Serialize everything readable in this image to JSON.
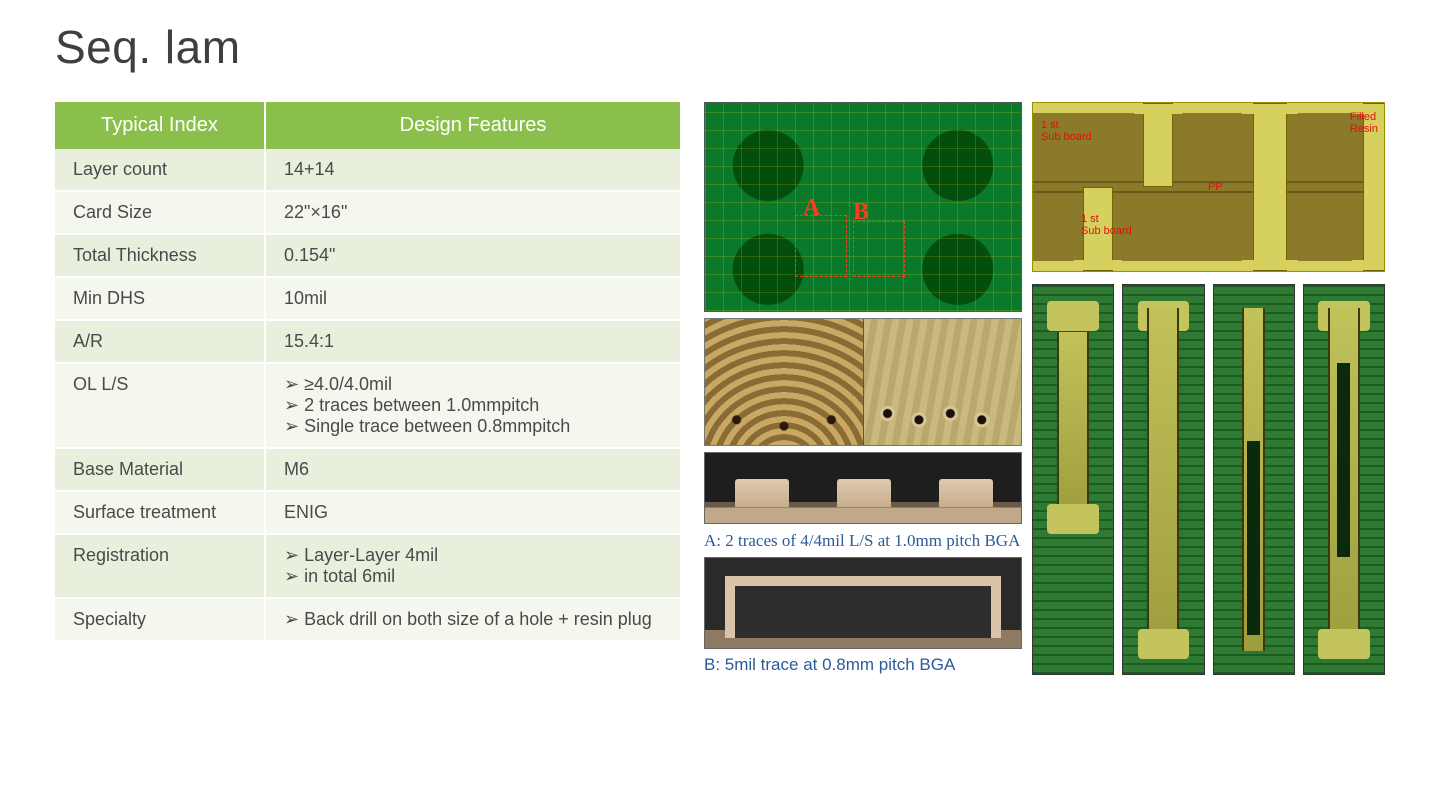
{
  "title": "Seq. lam",
  "table": {
    "headers": [
      "Typical Index",
      "Design Features"
    ],
    "rows": [
      {
        "label": "Layer count",
        "value": "14+14"
      },
      {
        "label": "Card Size",
        "value": "22\"×16\""
      },
      {
        "label": "Total Thickness",
        "value": "0.154\""
      },
      {
        "label": "Min DHS",
        "value": "10mil"
      },
      {
        "label": "A/R",
        "value": "15.4:1"
      },
      {
        "label": "OL L/S",
        "bullets": [
          "≥4.0/4.0mil",
          "2 traces between 1.0mmpitch",
          "Single trace between 0.8mmpitch"
        ]
      },
      {
        "label": "Base Material",
        "value": "M6"
      },
      {
        "label": "Surface treatment",
        "value": "ENIG"
      },
      {
        "label": "Registration",
        "bullets": [
          "Layer-Layer 4mil",
          "in total 6mil"
        ]
      },
      {
        "label": "Specialty",
        "bullets": [
          "Back drill on both size of a hole + resin plug"
        ]
      }
    ]
  },
  "pcb_labels": {
    "a": "A",
    "b": "B"
  },
  "caption_a": "A: 2 traces of 4/4mil L/S at 1.0mm pitch BGA",
  "caption_b": "B: 5mil trace at 0.8mm pitch BGA",
  "stackup_labels": {
    "l1": "1 st\nSub board",
    "l2": "1 st\nSub board",
    "pp": "PP",
    "filled": "Filled\nResin"
  },
  "colors": {
    "header_bg": "#8bbf4c",
    "row_odd": "#e8efdd",
    "row_even": "#f4f7ee",
    "caption": "#2b5b9a",
    "pcb_green": "#0a7a2a",
    "stackup_bg": "#8a7a2a",
    "stackup_via": "#d6d05e",
    "label_red": "#d11"
  }
}
